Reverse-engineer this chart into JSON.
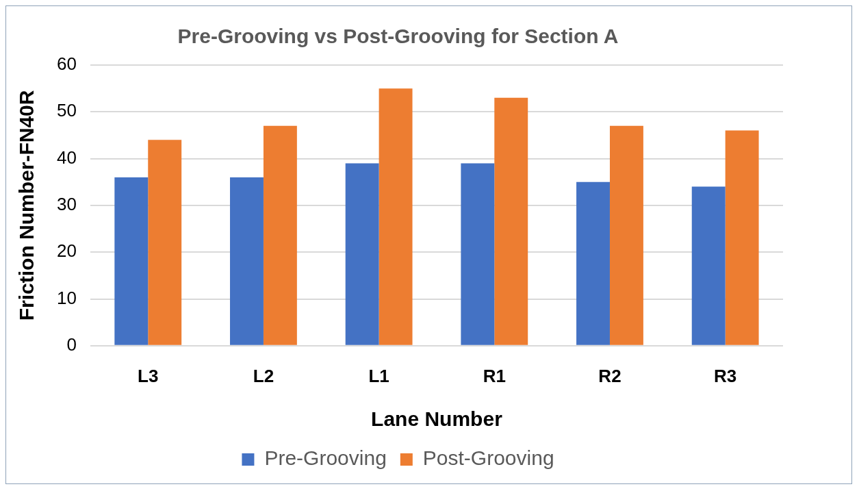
{
  "chart_data": {
    "type": "bar",
    "title": "Pre-Grooving vs Post-Grooving for Section A",
    "xlabel": "Lane Number",
    "ylabel": "Friction Number-FN40R",
    "categories": [
      "L3",
      "L2",
      "L1",
      "R1",
      "R2",
      "R3"
    ],
    "series": [
      {
        "name": "Pre-Grooving",
        "color": "#4472c4",
        "values": [
          36,
          36,
          39,
          39,
          35,
          34
        ]
      },
      {
        "name": "Post-Grooving",
        "color": "#ed7d31",
        "values": [
          44,
          47,
          55,
          53,
          47,
          46
        ]
      }
    ],
    "ylim": [
      0,
      60
    ],
    "yticks": [
      0,
      10,
      20,
      30,
      40,
      50,
      60
    ],
    "grid": "y",
    "legend": "bottom"
  }
}
